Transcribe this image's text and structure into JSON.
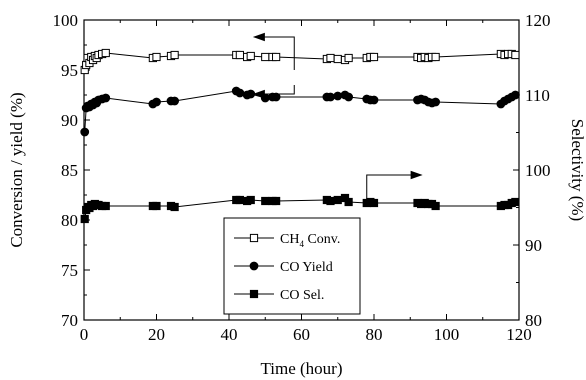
{
  "chart_data": {
    "type": "line",
    "xlabel": "Time (hour)",
    "ylabel": "Conversion / yield (%)",
    "y2label": "Selectivity (%)",
    "xlim": [
      0,
      120
    ],
    "ylim": [
      70,
      100
    ],
    "y2lim": [
      80,
      120
    ],
    "x_ticks": [
      "0",
      "20",
      "40",
      "60",
      "80",
      "100",
      "120"
    ],
    "y_ticks": [
      "70",
      "75",
      "80",
      "85",
      "90",
      "95",
      "100"
    ],
    "y2_ticks": [
      "80",
      "90",
      "100",
      "110",
      "120"
    ],
    "grid": false,
    "legend_position": "center-bottom",
    "series": [
      {
        "name": "CH4 Conv.",
        "legend_main": "CH",
        "legend_sub": "4",
        "legend_rest": " Conv.",
        "axis": "left",
        "marker": "open-square",
        "x": [
          0.2,
          0.6,
          1,
          1.5,
          2,
          2.5,
          3,
          3.5,
          4,
          5,
          6,
          19,
          20,
          24,
          25,
          42,
          43,
          45,
          46,
          50,
          52,
          53,
          67,
          68,
          70,
          72,
          73,
          78,
          79,
          80,
          92,
          93,
          94,
          95,
          96,
          97,
          115,
          116,
          117,
          118,
          119
        ],
        "y": [
          95.0,
          95.5,
          96.2,
          95.7,
          96.3,
          96.0,
          96.4,
          96.2,
          96.5,
          96.6,
          96.7,
          96.2,
          96.3,
          96.4,
          96.5,
          96.5,
          96.5,
          96.3,
          96.4,
          96.3,
          96.3,
          96.3,
          96.1,
          96.2,
          96.1,
          96.0,
          96.2,
          96.2,
          96.3,
          96.3,
          96.3,
          96.2,
          96.3,
          96.2,
          96.3,
          96.3,
          96.6,
          96.5,
          96.6,
          96.6,
          96.5
        ]
      },
      {
        "name": "CO Yield",
        "legend_main": "CO Yield",
        "axis": "left",
        "marker": "filled-circle",
        "x": [
          0.2,
          0.6,
          1,
          1.5,
          2,
          2.5,
          3,
          3.5,
          4,
          5,
          6,
          19,
          20,
          24,
          25,
          42,
          43,
          45,
          46,
          50,
          52,
          53,
          67,
          68,
          70,
          72,
          73,
          78,
          79,
          80,
          92,
          93,
          94,
          95,
          96,
          97,
          115,
          116,
          117,
          118,
          119
        ],
        "y": [
          88.8,
          91.2,
          91.4,
          91.3,
          91.6,
          91.5,
          91.8,
          91.7,
          92.0,
          92.1,
          92.2,
          91.6,
          91.8,
          91.9,
          91.9,
          92.9,
          92.7,
          92.5,
          92.6,
          92.2,
          92.3,
          92.3,
          92.3,
          92.3,
          92.4,
          92.5,
          92.3,
          92.1,
          92.0,
          92.0,
          92.0,
          92.1,
          92.0,
          91.8,
          91.7,
          91.8,
          91.6,
          91.9,
          92.1,
          92.3,
          92.5
        ]
      },
      {
        "name": "CO Sel.",
        "legend_main": "CO Sel.",
        "axis": "left",
        "marker": "filled-square",
        "x": [
          0.2,
          0.6,
          1,
          1.5,
          2,
          2.5,
          3,
          3.5,
          4,
          5,
          6,
          19,
          20,
          24,
          25,
          42,
          43,
          45,
          46,
          50,
          52,
          53,
          67,
          68,
          70,
          72,
          73,
          78,
          79,
          80,
          92,
          93,
          94,
          95,
          96,
          97,
          115,
          116,
          117,
          118,
          119
        ],
        "y": [
          80.1,
          81.0,
          81.3,
          81.2,
          81.5,
          81.4,
          81.6,
          81.5,
          81.5,
          81.4,
          81.4,
          81.4,
          81.4,
          81.4,
          81.3,
          82.0,
          82.0,
          81.9,
          82.0,
          81.9,
          81.9,
          81.9,
          82.0,
          81.9,
          82.0,
          82.2,
          81.8,
          81.7,
          81.8,
          81.7,
          81.7,
          81.6,
          81.7,
          81.6,
          81.6,
          81.4,
          81.4,
          81.5,
          81.5,
          81.7,
          81.8
        ]
      }
    ],
    "annotations": [
      {
        "type": "arrow",
        "direction": "left",
        "axis": "left",
        "hook_x": 58,
        "hook_y": 95.0,
        "tip_x": 47,
        "tip_y": 98.3
      },
      {
        "type": "arrow",
        "direction": "left",
        "axis": "left",
        "hook_x": 58,
        "hook_y": 93.5,
        "tip_x": 47,
        "tip_y": 92.6
      },
      {
        "type": "arrow",
        "direction": "right",
        "axis": "left",
        "hook_x": 78,
        "hook_y": 81.6,
        "tip_x": 93,
        "tip_y": 84.5
      }
    ]
  }
}
